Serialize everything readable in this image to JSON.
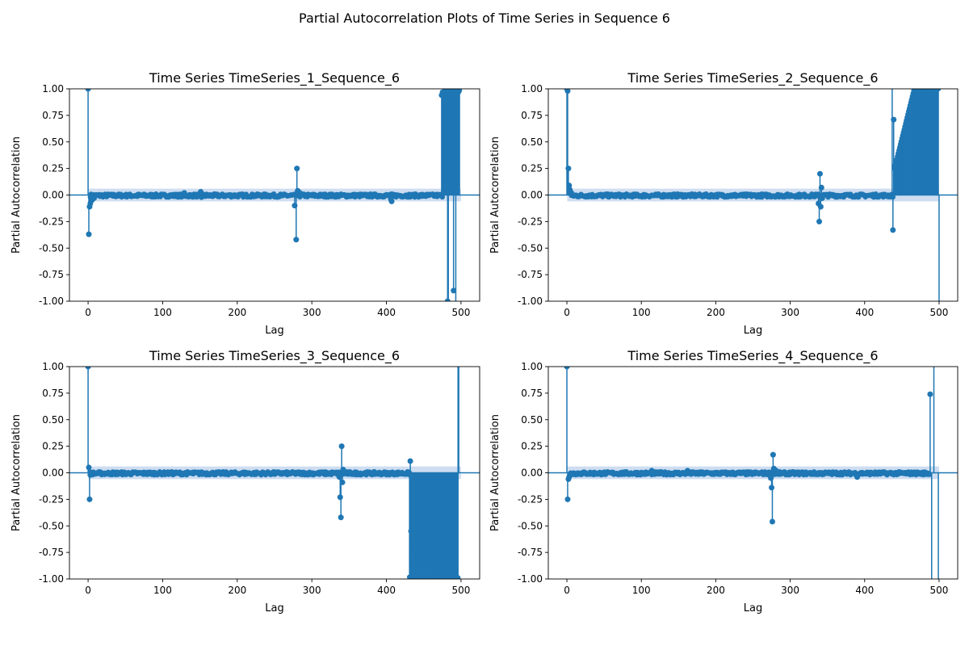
{
  "figure": {
    "title": "Partial Autocorrelation Plots of Time Series in Sequence 6",
    "stem_color": "#1f77b4",
    "band_color": "#aec7e8"
  },
  "chart_data": [
    {
      "type": "stem",
      "title": "Time Series TimeSeries_1_Sequence_6",
      "xlabel": "Lag",
      "ylabel": "Partial Autocorrelation",
      "xlim": [
        -25,
        525
      ],
      "ylim": [
        -1.0,
        1.0
      ],
      "xticks": [
        0,
        100,
        200,
        300,
        400,
        500
      ],
      "yticks": [
        -1.0,
        -0.75,
        -0.5,
        -0.25,
        0.0,
        0.25,
        0.5,
        0.75,
        1.0
      ],
      "confidence_band": 0.06,
      "points": [
        [
          0,
          1.0
        ],
        [
          1,
          -0.37
        ],
        [
          2,
          -0.11
        ],
        [
          3,
          -0.08
        ],
        [
          5,
          -0.05
        ],
        [
          8,
          -0.03
        ],
        [
          129,
          0.02
        ],
        [
          151,
          0.03
        ],
        [
          152,
          -0.02
        ],
        [
          277,
          -0.1
        ],
        [
          279,
          -0.42
        ],
        [
          280,
          0.25
        ],
        [
          281,
          0.04
        ],
        [
          284,
          0.02
        ],
        [
          406,
          -0.04
        ],
        [
          407,
          -0.06
        ],
        [
          474,
          0.94
        ],
        [
          482,
          -1.0
        ],
        [
          490,
          -0.9
        ]
      ],
      "noise_ranges": [
        [
          3,
          475,
          0.0
        ],
        [
          475,
          498,
          1.0
        ]
      ],
      "out_of_range": [
        [
          483,
          -1
        ],
        [
          493,
          -1
        ]
      ]
    },
    {
      "type": "stem",
      "title": "Time Series TimeSeries_2_Sequence_6",
      "xlabel": "Lag",
      "ylabel": "Partial Autocorrelation",
      "xlim": [
        -25,
        525
      ],
      "ylim": [
        -1.0,
        1.0
      ],
      "xticks": [
        0,
        100,
        200,
        300,
        400,
        500
      ],
      "yticks": [
        -1.0,
        -0.75,
        -0.5,
        -0.25,
        0.0,
        0.25,
        0.5,
        0.75,
        1.0
      ],
      "confidence_band": 0.06,
      "points": [
        [
          0,
          1.0
        ],
        [
          1,
          0.98
        ],
        [
          2,
          0.25
        ],
        [
          3,
          0.09
        ],
        [
          4,
          0.05
        ],
        [
          6,
          0.02
        ],
        [
          338,
          -0.08
        ],
        [
          339,
          -0.25
        ],
        [
          340,
          0.2
        ],
        [
          341,
          -0.11
        ],
        [
          342,
          0.07
        ],
        [
          343,
          -0.03
        ],
        [
          438,
          -0.33
        ],
        [
          439,
          0.71
        ],
        [
          440,
          0.27
        ]
      ],
      "noise_ranges": [
        [
          6,
          438,
          0.0
        ]
      ],
      "ramp": [
        440,
        499,
        0.25,
        1.0
      ],
      "out_of_range": [
        [
          437,
          1
        ],
        [
          500,
          -1
        ]
      ]
    },
    {
      "type": "stem",
      "title": "Time Series TimeSeries_3_Sequence_6",
      "xlabel": "Lag",
      "ylabel": "Partial Autocorrelation",
      "xlim": [
        -25,
        525
      ],
      "ylim": [
        -1.0,
        1.0
      ],
      "xticks": [
        0,
        100,
        200,
        300,
        400,
        500
      ],
      "yticks": [
        -1.0,
        -0.75,
        -0.5,
        -0.25,
        0.0,
        0.25,
        0.5,
        0.75,
        1.0
      ],
      "confidence_band": 0.06,
      "points": [
        [
          0,
          1.0
        ],
        [
          1,
          0.05
        ],
        [
          2,
          -0.25
        ],
        [
          3,
          -0.02
        ],
        [
          337,
          -0.04
        ],
        [
          338,
          -0.23
        ],
        [
          339,
          -0.42
        ],
        [
          340,
          0.25
        ],
        [
          341,
          -0.09
        ],
        [
          342,
          0.03
        ],
        [
          432,
          0.11
        ],
        [
          433,
          -0.55
        ],
        [
          434,
          -0.7
        ],
        [
          435,
          -0.8
        ],
        [
          436,
          -0.9
        ],
        [
          437,
          -0.98
        ]
      ],
      "noise_ranges": [
        [
          3,
          431,
          0.0
        ],
        [
          431,
          496,
          -1.0
        ]
      ],
      "out_of_range": [
        [
          496,
          1
        ],
        [
          497,
          1
        ]
      ]
    },
    {
      "type": "stem",
      "title": "Time Series TimeSeries_4_Sequence_6",
      "xlabel": "Lag",
      "ylabel": "Partial Autocorrelation",
      "xlim": [
        -25,
        525
      ],
      "ylim": [
        -1.0,
        1.0
      ],
      "xticks": [
        0,
        100,
        200,
        300,
        400,
        500
      ],
      "yticks": [
        -1.0,
        -0.75,
        -0.5,
        -0.25,
        0.0,
        0.25,
        0.5,
        0.75,
        1.0
      ],
      "confidence_band": 0.06,
      "points": [
        [
          0,
          1.0
        ],
        [
          1,
          -0.25
        ],
        [
          2,
          -0.06
        ],
        [
          3,
          -0.04
        ],
        [
          5,
          -0.02
        ],
        [
          114,
          0.02
        ],
        [
          162,
          0.02
        ],
        [
          274,
          -0.05
        ],
        [
          275,
          -0.14
        ],
        [
          276,
          -0.46
        ],
        [
          277,
          0.17
        ],
        [
          278,
          0.04
        ],
        [
          281,
          0.02
        ],
        [
          390,
          -0.04
        ],
        [
          488,
          0.74
        ]
      ],
      "noise_ranges": [
        [
          5,
          487,
          0.0
        ]
      ],
      "out_of_range": [
        [
          490,
          -1
        ],
        [
          493,
          1
        ],
        [
          499,
          -1
        ]
      ]
    }
  ]
}
